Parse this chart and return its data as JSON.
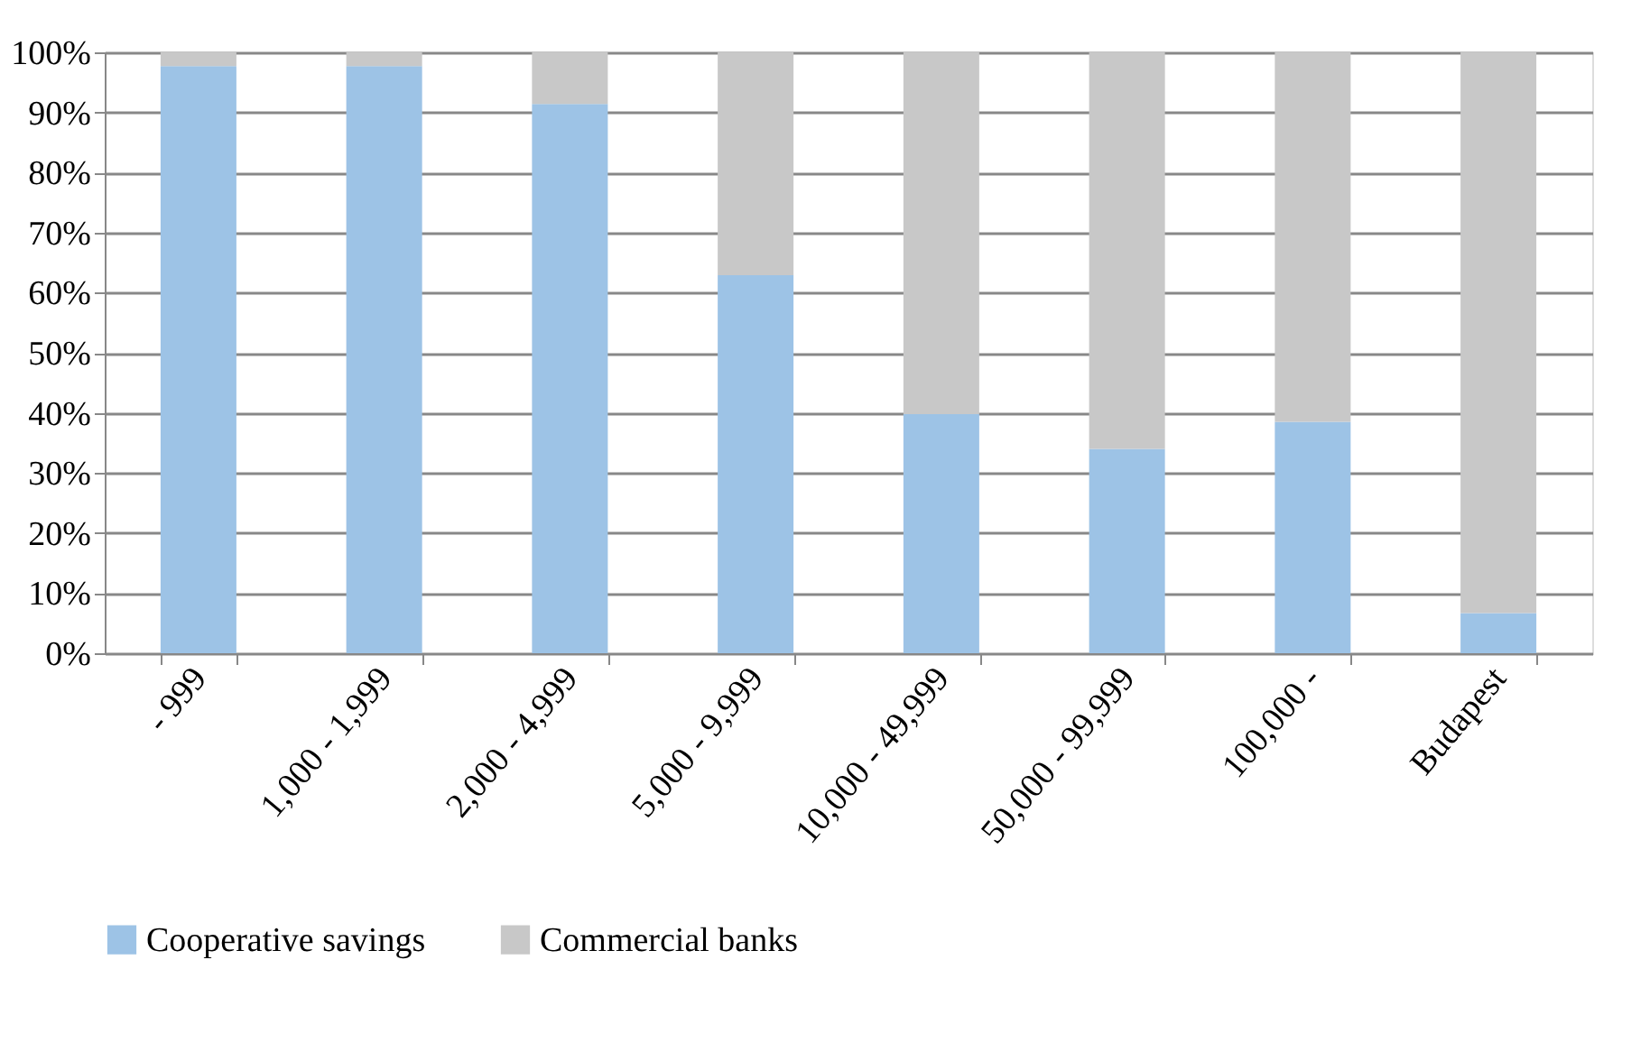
{
  "chart_data": {
    "type": "bar",
    "stacked": true,
    "categories": [
      "- 999",
      "1,000 - 1,999",
      "2,000 - 4,999",
      "5,000 - 9,999",
      "10,000 - 49,999",
      "50,000 - 99,999",
      "100,000 -",
      "Budapest"
    ],
    "series": [
      {
        "name": "Cooperative savings",
        "color": "#9dc3e6",
        "values": [
          97.7,
          97.7,
          91.4,
          62.9,
          39.8,
          34.0,
          38.5,
          6.7
        ]
      },
      {
        "name": "Commercial banks",
        "color": "#c8c8c8",
        "values": [
          2.3,
          2.3,
          8.6,
          37.1,
          60.2,
          66.0,
          61.5,
          93.3
        ]
      }
    ],
    "ylim": [
      0,
      100
    ],
    "yticks": [
      {
        "value": 0,
        "label": "0%"
      },
      {
        "value": 10,
        "label": "10%"
      },
      {
        "value": 20,
        "label": "20%"
      },
      {
        "value": 30,
        "label": "30%"
      },
      {
        "value": 40,
        "label": "40%"
      },
      {
        "value": 50,
        "label": "50%"
      },
      {
        "value": 60,
        "label": "60%"
      },
      {
        "value": 70,
        "label": "70%"
      },
      {
        "value": 80,
        "label": "80%"
      },
      {
        "value": 90,
        "label": "90%"
      },
      {
        "value": 100,
        "label": "100%"
      }
    ],
    "grid": "y",
    "legend": "bottom"
  }
}
